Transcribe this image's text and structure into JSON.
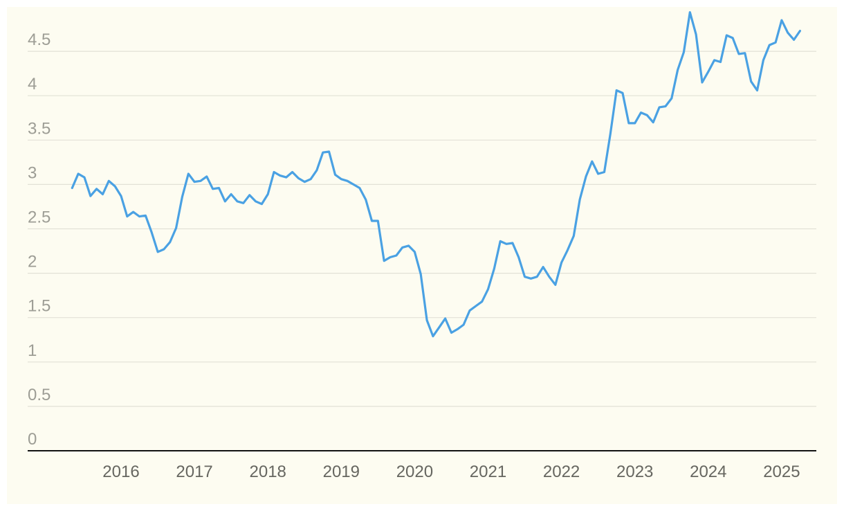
{
  "chart_data": {
    "type": "line",
    "title": "",
    "xlabel": "",
    "ylabel": "",
    "ylim": [
      0,
      5
    ],
    "y_ticks": [
      "0",
      "0.5",
      "1",
      "1.5",
      "2",
      "2.5",
      "3",
      "3.5",
      "4",
      "4.5"
    ],
    "x_ticks": [
      "2016",
      "2017",
      "2018",
      "2019",
      "2020",
      "2021",
      "2022",
      "2023",
      "2024",
      "2025"
    ],
    "grid": true,
    "line_color": "#4aa1e3",
    "background_color": "#fdfcf1",
    "series": [
      {
        "x": [
          "2015-05",
          "2015-06",
          "2015-07",
          "2015-08",
          "2015-09",
          "2015-10",
          "2015-11",
          "2015-12",
          "2016-01",
          "2016-02",
          "2016-03",
          "2016-04",
          "2016-05",
          "2016-06",
          "2016-07",
          "2016-08",
          "2016-09",
          "2016-10",
          "2016-11",
          "2016-12",
          "2017-01",
          "2017-02",
          "2017-03",
          "2017-04",
          "2017-05",
          "2017-06",
          "2017-07",
          "2017-08",
          "2017-09",
          "2017-10",
          "2017-11",
          "2017-12",
          "2018-01",
          "2018-02",
          "2018-03",
          "2018-04",
          "2018-05",
          "2018-06",
          "2018-07",
          "2018-08",
          "2018-09",
          "2018-10",
          "2018-11",
          "2018-12",
          "2019-01",
          "2019-02",
          "2019-03",
          "2019-04",
          "2019-05",
          "2019-06",
          "2019-07",
          "2019-08",
          "2019-09",
          "2019-10",
          "2019-11",
          "2019-12",
          "2020-01",
          "2020-02",
          "2020-03",
          "2020-04",
          "2020-05",
          "2020-06",
          "2020-07",
          "2020-08",
          "2020-09",
          "2020-10",
          "2020-11",
          "2020-12",
          "2021-01",
          "2021-02",
          "2021-03",
          "2021-04",
          "2021-05",
          "2021-06",
          "2021-07",
          "2021-08",
          "2021-09",
          "2021-10",
          "2021-11",
          "2021-12",
          "2022-01",
          "2022-02",
          "2022-03",
          "2022-04",
          "2022-05",
          "2022-06",
          "2022-07",
          "2022-08",
          "2022-09",
          "2022-10",
          "2022-11",
          "2022-12",
          "2023-01",
          "2023-02",
          "2023-03",
          "2023-04",
          "2023-05",
          "2023-06",
          "2023-07",
          "2023-08",
          "2023-09",
          "2023-10",
          "2023-11",
          "2023-12",
          "2024-01",
          "2024-02",
          "2024-03",
          "2024-04",
          "2024-05",
          "2024-06",
          "2024-07",
          "2024-08",
          "2024-09",
          "2024-10",
          "2024-11",
          "2024-12",
          "2025-01",
          "2025-02",
          "2025-03",
          "2025-04"
        ],
        "values": [
          2.96,
          3.12,
          3.08,
          2.87,
          2.95,
          2.89,
          3.04,
          2.98,
          2.87,
          2.64,
          2.69,
          2.64,
          2.65,
          2.46,
          2.24,
          2.27,
          2.35,
          2.51,
          2.86,
          3.12,
          3.03,
          3.04,
          3.09,
          2.95,
          2.96,
          2.81,
          2.89,
          2.81,
          2.79,
          2.88,
          2.81,
          2.78,
          2.89,
          3.14,
          3.1,
          3.08,
          3.14,
          3.07,
          3.03,
          3.06,
          3.16,
          3.36,
          3.37,
          3.11,
          3.06,
          3.04,
          3.0,
          2.96,
          2.83,
          2.59,
          2.59,
          2.14,
          2.18,
          2.2,
          2.29,
          2.31,
          2.24,
          1.99,
          1.47,
          1.29,
          1.39,
          1.49,
          1.33,
          1.37,
          1.42,
          1.58,
          1.63,
          1.68,
          1.82,
          2.05,
          2.36,
          2.33,
          2.34,
          2.18,
          1.96,
          1.94,
          1.96,
          2.07,
          1.96,
          1.87,
          2.12,
          2.26,
          2.42,
          2.83,
          3.09,
          3.26,
          3.12,
          3.14,
          3.57,
          4.06,
          4.03,
          3.69,
          3.69,
          3.81,
          3.78,
          3.7,
          3.87,
          3.88,
          3.97,
          4.29,
          4.49,
          4.94,
          4.69,
          4.15,
          4.27,
          4.4,
          4.38,
          4.68,
          4.65,
          4.47,
          4.48,
          4.16,
          4.06,
          4.4,
          4.57,
          4.6,
          4.85,
          4.71,
          4.63,
          4.73
        ]
      }
    ]
  }
}
